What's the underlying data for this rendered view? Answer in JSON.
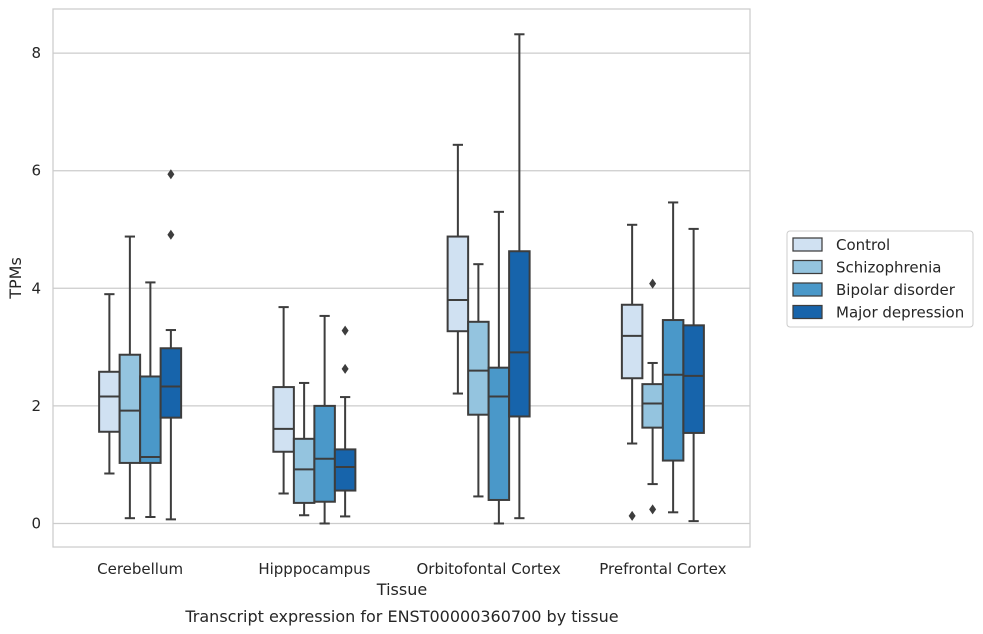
{
  "chart_data": {
    "type": "box",
    "xlabel": "Tissue",
    "ylabel": "TPMs",
    "caption": "Transcript expression for ENST00000360700 by tissue",
    "ylim": [
      -0.4,
      8.75
    ],
    "yticks": [
      0,
      2,
      4,
      6,
      8
    ],
    "grid": "horizontal",
    "legend_position": "right",
    "categories": [
      "Cerebellum",
      "Hipppocampus",
      "Orbitofontal Cortex",
      "Prefrontal Cortex"
    ],
    "series": [
      {
        "name": "Control",
        "color": "#d0e1f2",
        "boxes": [
          {
            "whislo": 0.85,
            "q1": 1.56,
            "med": 2.16,
            "q3": 2.58,
            "whishi": 3.9,
            "fliers": []
          },
          {
            "whislo": 0.51,
            "q1": 1.22,
            "med": 1.61,
            "q3": 2.32,
            "whishi": 3.68,
            "fliers": []
          },
          {
            "whislo": 2.21,
            "q1": 3.27,
            "med": 3.8,
            "q3": 4.88,
            "whishi": 6.44,
            "fliers": []
          },
          {
            "whislo": 1.36,
            "q1": 2.47,
            "med": 3.19,
            "q3": 3.72,
            "whishi": 5.08,
            "fliers": [
              0.13
            ]
          }
        ]
      },
      {
        "name": "Schizophrenia",
        "color": "#94c4df",
        "boxes": [
          {
            "whislo": 0.09,
            "q1": 1.03,
            "med": 1.92,
            "q3": 2.87,
            "whishi": 4.88,
            "fliers": []
          },
          {
            "whislo": 0.14,
            "q1": 0.35,
            "med": 0.92,
            "q3": 1.44,
            "whishi": 2.39,
            "fliers": []
          },
          {
            "whislo": 0.46,
            "q1": 1.85,
            "med": 2.6,
            "q3": 3.43,
            "whishi": 4.41,
            "fliers": []
          },
          {
            "whislo": 0.67,
            "q1": 1.63,
            "med": 2.04,
            "q3": 2.37,
            "whishi": 2.73,
            "fliers": [
              0.24,
              4.08
            ]
          }
        ]
      },
      {
        "name": "Bipolar disorder",
        "color": "#4a98c9",
        "boxes": [
          {
            "whislo": 0.11,
            "q1": 1.03,
            "med": 1.13,
            "q3": 2.5,
            "whishi": 4.1,
            "fliers": []
          },
          {
            "whislo": 0.0,
            "q1": 0.37,
            "med": 1.1,
            "q3": 2.0,
            "whishi": 3.53,
            "fliers": []
          },
          {
            "whislo": 0.0,
            "q1": 0.4,
            "med": 2.16,
            "q3": 2.65,
            "whishi": 5.3,
            "fliers": []
          },
          {
            "whislo": 0.19,
            "q1": 1.07,
            "med": 2.53,
            "q3": 3.46,
            "whishi": 5.46,
            "fliers": []
          }
        ]
      },
      {
        "name": "Major depression",
        "color": "#1764ab",
        "boxes": [
          {
            "whislo": 0.07,
            "q1": 1.8,
            "med": 2.33,
            "q3": 2.98,
            "whishi": 3.29,
            "fliers": [
              4.91,
              5.94
            ]
          },
          {
            "whislo": 0.12,
            "q1": 0.56,
            "med": 0.96,
            "q3": 1.26,
            "whishi": 2.15,
            "fliers": [
              2.63,
              3.28
            ]
          },
          {
            "whislo": 0.09,
            "q1": 1.82,
            "med": 2.91,
            "q3": 4.63,
            "whishi": 8.32,
            "fliers": []
          },
          {
            "whislo": 0.04,
            "q1": 1.54,
            "med": 2.51,
            "q3": 3.37,
            "whishi": 5.01,
            "fliers": []
          }
        ]
      }
    ]
  }
}
